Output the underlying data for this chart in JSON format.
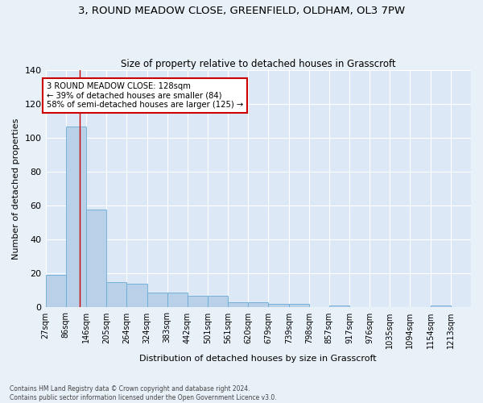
{
  "title": "3, ROUND MEADOW CLOSE, GREENFIELD, OLDHAM, OL3 7PW",
  "subtitle": "Size of property relative to detached houses in Grasscroft",
  "xlabel": "Distribution of detached houses by size in Grasscroft",
  "ylabel": "Number of detached properties",
  "bar_edges": [
    27,
    86,
    146,
    205,
    264,
    324,
    383,
    442,
    501,
    561,
    620,
    679,
    739,
    798,
    857,
    917,
    976,
    1035,
    1094,
    1154,
    1213
  ],
  "bar_heights": [
    19,
    107,
    58,
    15,
    14,
    9,
    9,
    7,
    7,
    3,
    3,
    2,
    2,
    0,
    1,
    0,
    0,
    0,
    0,
    1,
    0
  ],
  "bar_color": "#b8d0e8",
  "bar_edge_color": "#6aaad4",
  "property_line_x": 128,
  "annotation_line1": "3 ROUND MEADOW CLOSE: 128sqm",
  "annotation_line2": "← 39% of detached houses are smaller (84)",
  "annotation_line3": "58% of semi-detached houses are larger (125) →",
  "annotation_box_color": "#ffffff",
  "annotation_box_edge": "#cc0000",
  "vline_color": "#cc0000",
  "bg_color": "#dce8f5",
  "grid_color": "#ffffff",
  "fig_bg_color": "#e8f0f8",
  "footer_line1": "Contains HM Land Registry data © Crown copyright and database right 2024.",
  "footer_line2": "Contains public sector information licensed under the Open Government Licence v3.0.",
  "ylim": [
    0,
    140
  ],
  "yticks": [
    0,
    20,
    40,
    60,
    80,
    100,
    120,
    140
  ]
}
